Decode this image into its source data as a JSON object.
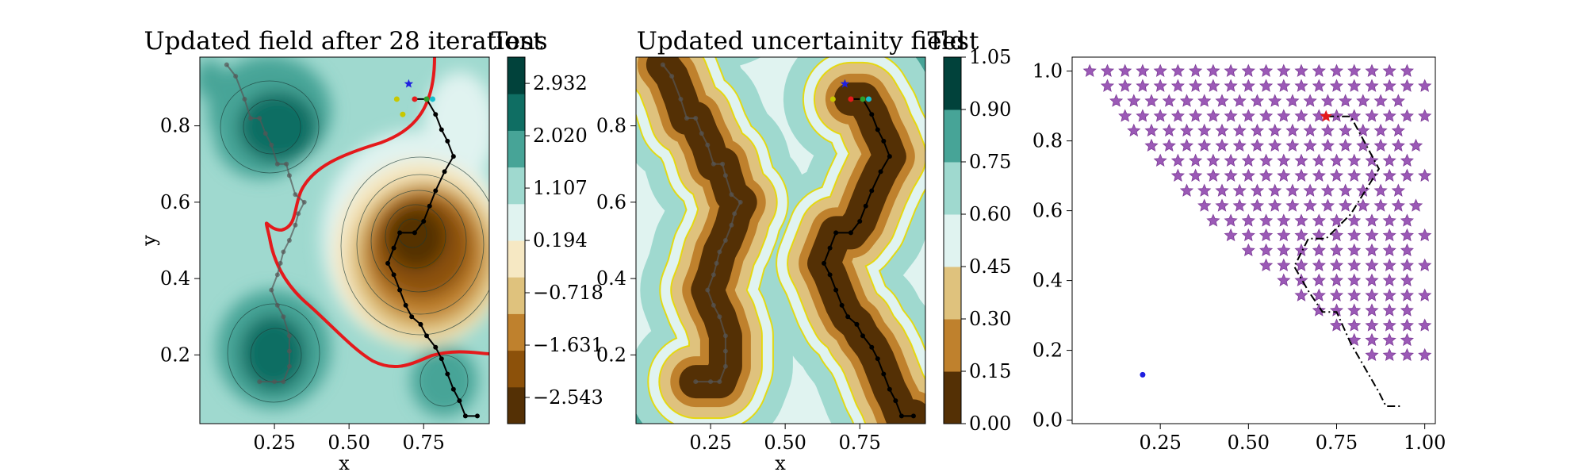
{
  "chart_data": [
    {
      "type": "contour",
      "title": "Updated field after 28 iterations",
      "xlabel": "x",
      "ylabel": "y",
      "xlim": [
        0.0,
        0.97
      ],
      "ylim": [
        0.02,
        0.98
      ],
      "xticks": [
        "0.25",
        "0.50",
        "0.75"
      ],
      "yticks": [
        "0.2",
        "0.4",
        "0.6",
        "0.8"
      ],
      "xtick_values": [
        0.25,
        0.5,
        0.75
      ],
      "ytick_values": [
        0.2,
        0.4,
        0.6,
        0.8
      ],
      "colorbar": {
        "title": "Test",
        "tick_labels": [
          "2.932",
          "2.020",
          "1.107",
          "0.194",
          "−0.718",
          "−1.631",
          "−2.543"
        ],
        "tick_values": [
          2.932,
          2.02,
          1.107,
          0.194,
          -0.718,
          -1.631,
          -2.543
        ],
        "range": [
          -3.0,
          3.39
        ],
        "colors": [
          "#543005",
          "#8c510a",
          "#bf812d",
          "#dfc27d",
          "#f6e8c3",
          "#e0f3f0",
          "#9fd9cf",
          "#47a497",
          "#0f6e63",
          "#01423b"
        ]
      },
      "threshold_contour_color": "#e41a1c",
      "paths": [
        {
          "name": "",
          "color": "#555555",
          "points": [
            [
              0.09,
              0.96
            ],
            [
              0.12,
              0.93
            ],
            [
              0.15,
              0.87
            ],
            [
              0.17,
              0.82
            ],
            [
              0.2,
              0.82
            ],
            [
              0.22,
              0.78
            ],
            [
              0.24,
              0.75
            ],
            [
              0.26,
              0.7
            ],
            [
              0.29,
              0.7
            ],
            [
              0.3,
              0.67
            ],
            [
              0.32,
              0.62
            ],
            [
              0.35,
              0.6
            ],
            [
              0.33,
              0.57
            ],
            [
              0.32,
              0.54
            ],
            [
              0.3,
              0.5
            ],
            [
              0.28,
              0.47
            ],
            [
              0.27,
              0.44
            ],
            [
              0.26,
              0.41
            ],
            [
              0.24,
              0.37
            ],
            [
              0.26,
              0.33
            ],
            [
              0.28,
              0.3
            ],
            [
              0.3,
              0.25
            ],
            [
              0.3,
              0.21
            ],
            [
              0.3,
              0.17
            ],
            [
              0.28,
              0.13
            ],
            [
              0.25,
              0.13
            ],
            [
              0.2,
              0.13
            ]
          ]
        },
        {
          "name": "",
          "color": "#000000",
          "points": [
            [
              0.72,
              0.87
            ],
            [
              0.76,
              0.87
            ],
            [
              0.79,
              0.83
            ],
            [
              0.81,
              0.79
            ],
            [
              0.83,
              0.76
            ],
            [
              0.85,
              0.72
            ],
            [
              0.82,
              0.68
            ],
            [
              0.79,
              0.63
            ],
            [
              0.77,
              0.59
            ],
            [
              0.75,
              0.55
            ],
            [
              0.72,
              0.52
            ],
            [
              0.67,
              0.52
            ],
            [
              0.65,
              0.48
            ],
            [
              0.63,
              0.44
            ],
            [
              0.65,
              0.41
            ],
            [
              0.67,
              0.37
            ],
            [
              0.69,
              0.33
            ],
            [
              0.71,
              0.3
            ],
            [
              0.74,
              0.28
            ],
            [
              0.76,
              0.25
            ],
            [
              0.79,
              0.22
            ],
            [
              0.81,
              0.19
            ],
            [
              0.83,
              0.15
            ],
            [
              0.85,
              0.11
            ],
            [
              0.87,
              0.08
            ],
            [
              0.89,
              0.04
            ],
            [
              0.93,
              0.04
            ]
          ]
        }
      ],
      "markers": [
        {
          "label": "",
          "color": "#1f1fe0",
          "shape": "star",
          "x": 0.7,
          "y": 0.91
        },
        {
          "label": "",
          "color": "#e41a1c",
          "shape": "dot",
          "x": 0.72,
          "y": 0.87
        },
        {
          "label": "",
          "color": "#2ca02c",
          "shape": "dot",
          "x": 0.76,
          "y": 0.87
        },
        {
          "label": "",
          "color": "#17becf",
          "shape": "dot",
          "x": 0.78,
          "y": 0.87
        },
        {
          "label": "",
          "color": "#c8c800",
          "shape": "dot",
          "x": 0.66,
          "y": 0.87
        },
        {
          "label": "",
          "color": "#c8c800",
          "shape": "dot",
          "x": 0.68,
          "y": 0.83
        }
      ]
    },
    {
      "type": "contour",
      "title": "Updated uncertainity field",
      "xlabel": "x",
      "ylabel": "",
      "xlim": [
        0.0,
        0.97
      ],
      "ylim": [
        0.02,
        0.98
      ],
      "xticks": [
        "0.25",
        "0.50",
        "0.75"
      ],
      "yticks": [
        "0.2",
        "0.4",
        "0.6",
        "0.8"
      ],
      "xtick_values": [
        0.25,
        0.5,
        0.75
      ],
      "ytick_values": [
        0.2,
        0.4,
        0.6,
        0.8
      ],
      "colorbar": {
        "title": "Test",
        "tick_labels": [
          "1.05",
          "0.90",
          "0.75",
          "0.60",
          "0.45",
          "0.30",
          "0.15",
          "0.00"
        ],
        "tick_values": [
          1.05,
          0.9,
          0.75,
          0.6,
          0.45,
          0.3,
          0.15,
          0.0
        ],
        "range": [
          0.0,
          1.05
        ],
        "colors": [
          "#543005",
          "#bf812d",
          "#dfc27d",
          "#e0f3f0",
          "#9fd9cf",
          "#47a497",
          "#01423b"
        ]
      },
      "boundary_line_color": "#e6d800",
      "paths": [
        {
          "name": "",
          "color": "#555555",
          "points": [
            [
              0.09,
              0.96
            ],
            [
              0.12,
              0.93
            ],
            [
              0.15,
              0.87
            ],
            [
              0.17,
              0.82
            ],
            [
              0.2,
              0.82
            ],
            [
              0.22,
              0.78
            ],
            [
              0.24,
              0.75
            ],
            [
              0.26,
              0.7
            ],
            [
              0.29,
              0.7
            ],
            [
              0.3,
              0.67
            ],
            [
              0.32,
              0.62
            ],
            [
              0.35,
              0.6
            ],
            [
              0.33,
              0.57
            ],
            [
              0.32,
              0.54
            ],
            [
              0.3,
              0.5
            ],
            [
              0.28,
              0.47
            ],
            [
              0.27,
              0.44
            ],
            [
              0.26,
              0.41
            ],
            [
              0.24,
              0.37
            ],
            [
              0.26,
              0.33
            ],
            [
              0.28,
              0.3
            ],
            [
              0.3,
              0.25
            ],
            [
              0.3,
              0.21
            ],
            [
              0.3,
              0.17
            ],
            [
              0.28,
              0.13
            ],
            [
              0.25,
              0.13
            ],
            [
              0.2,
              0.13
            ]
          ]
        },
        {
          "name": "",
          "color": "#000000",
          "points": [
            [
              0.72,
              0.87
            ],
            [
              0.76,
              0.87
            ],
            [
              0.79,
              0.83
            ],
            [
              0.81,
              0.79
            ],
            [
              0.83,
              0.76
            ],
            [
              0.85,
              0.72
            ],
            [
              0.82,
              0.68
            ],
            [
              0.79,
              0.63
            ],
            [
              0.77,
              0.59
            ],
            [
              0.75,
              0.55
            ],
            [
              0.72,
              0.52
            ],
            [
              0.67,
              0.52
            ],
            [
              0.65,
              0.48
            ],
            [
              0.63,
              0.44
            ],
            [
              0.65,
              0.41
            ],
            [
              0.67,
              0.37
            ],
            [
              0.69,
              0.33
            ],
            [
              0.71,
              0.3
            ],
            [
              0.74,
              0.28
            ],
            [
              0.76,
              0.25
            ],
            [
              0.79,
              0.22
            ],
            [
              0.81,
              0.19
            ],
            [
              0.83,
              0.15
            ],
            [
              0.85,
              0.11
            ],
            [
              0.87,
              0.08
            ],
            [
              0.89,
              0.04
            ],
            [
              0.93,
              0.04
            ]
          ]
        }
      ],
      "markers": [
        {
          "label": "",
          "color": "#1f1fe0",
          "shape": "star",
          "x": 0.7,
          "y": 0.91
        },
        {
          "label": "",
          "color": "#e41a1c",
          "shape": "dot",
          "x": 0.72,
          "y": 0.87
        },
        {
          "label": "",
          "color": "#2ca02c",
          "shape": "dot",
          "x": 0.76,
          "y": 0.87
        },
        {
          "label": "",
          "color": "#17becf",
          "shape": "dot",
          "x": 0.78,
          "y": 0.87
        },
        {
          "label": "",
          "color": "#c8c800",
          "shape": "dot",
          "x": 0.66,
          "y": 0.87
        }
      ]
    },
    {
      "type": "scatter",
      "title": "",
      "xlabel": "",
      "ylabel": "",
      "xlim": [
        0.0,
        1.03
      ],
      "ylim": [
        -0.01,
        1.04
      ],
      "xticks": [
        "0.25",
        "0.50",
        "0.75",
        "1.00"
      ],
      "yticks": [
        "0.0",
        "0.2",
        "0.4",
        "0.6",
        "0.8",
        "1.0"
      ],
      "xtick_values": [
        0.25,
        0.5,
        0.75,
        1.0
      ],
      "ytick_values": [
        0.0,
        0.2,
        0.4,
        0.6,
        0.8,
        1.0
      ],
      "star_grid": {
        "color": "#9b59b6",
        "edge_color": "#7d3c98",
        "row_ys": [
          1.0,
          0.957,
          0.914,
          0.871,
          0.829,
          0.786,
          0.743,
          0.7,
          0.657,
          0.614,
          0.571,
          0.529,
          0.486,
          0.443,
          0.4,
          0.357,
          0.314,
          0.271,
          0.229,
          0.186
        ],
        "x_step": 0.05,
        "first_row_x_start": 0.05,
        "last_row_x_end": 0.95,
        "row_x_ends": [
          0.95,
          1.0,
          0.95,
          1.0,
          0.95,
          1.0,
          0.95,
          1.0,
          0.95,
          1.0,
          0.95,
          1.0,
          0.95,
          1.0,
          0.95,
          1.0,
          0.95,
          1.0,
          0.95,
          1.0
        ],
        "row_x_starts": [
          0.05,
          0.1,
          0.125,
          0.15,
          0.175,
          0.225,
          0.25,
          0.3,
          0.325,
          0.375,
          0.4,
          0.45,
          0.5,
          0.55,
          0.6,
          0.65,
          0.7,
          0.75,
          0.8,
          0.85
        ]
      },
      "highlight_star": {
        "color": "#e41a1c",
        "x": 0.72,
        "y": 0.87
      },
      "dot": {
        "color": "#1f1fe0",
        "x": 0.2,
        "y": 0.13
      },
      "path": {
        "style": "dashdot",
        "color": "#000000",
        "points": [
          [
            0.72,
            0.87
          ],
          [
            0.79,
            0.87
          ],
          [
            0.87,
            0.72
          ],
          [
            0.79,
            0.59
          ],
          [
            0.72,
            0.52
          ],
          [
            0.67,
            0.52
          ],
          [
            0.63,
            0.44
          ],
          [
            0.67,
            0.37
          ],
          [
            0.71,
            0.31
          ],
          [
            0.75,
            0.31
          ],
          [
            0.79,
            0.22
          ],
          [
            0.87,
            0.08
          ],
          [
            0.89,
            0.04
          ],
          [
            0.93,
            0.04
          ]
        ]
      }
    }
  ]
}
